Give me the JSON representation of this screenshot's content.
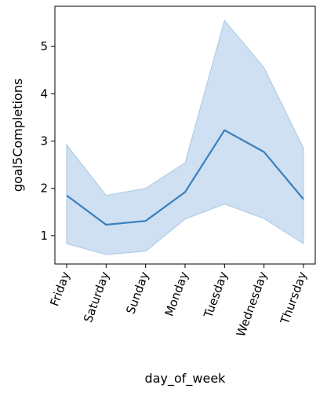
{
  "chart_data": {
    "type": "line",
    "xlabel": "day_of_week",
    "ylabel": "goal5Completions",
    "categories": [
      "Friday",
      "Saturday",
      "Sunday",
      "Monday",
      "Tuesday",
      "Wednesday",
      "Thursday"
    ],
    "series": [
      {
        "values": [
          1.85,
          1.23,
          1.31,
          1.92,
          3.23,
          2.77,
          1.77
        ],
        "ci_lower": [
          0.83,
          0.6,
          0.67,
          1.35,
          1.67,
          1.36,
          0.83
        ],
        "ci_upper": [
          2.92,
          1.85,
          2.0,
          2.54,
          5.55,
          4.55,
          2.85
        ]
      }
    ],
    "yticks": [
      "1",
      "2",
      "3",
      "4",
      "5"
    ],
    "ylim": [
      0.4,
      5.85
    ],
    "grid": false,
    "legend": "none",
    "colors": {
      "line": "#3a7fbf",
      "band": "#c6dbef",
      "band_stroke": "#a9c8e4",
      "axis": "#000000"
    }
  }
}
